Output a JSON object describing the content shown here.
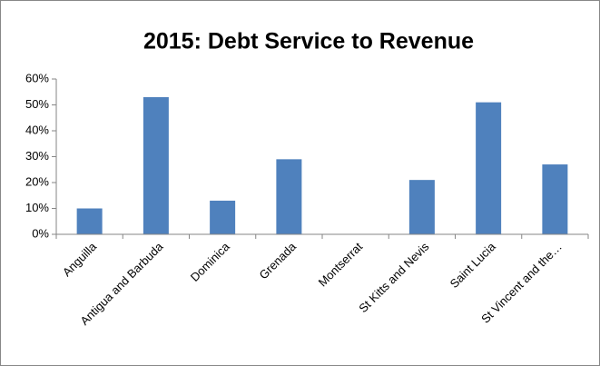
{
  "chart_data": {
    "type": "bar",
    "title": "2015: Debt Service to Revenue",
    "categories": [
      "Anguilla",
      "Antigua and Barbuda",
      "Dominica",
      "Grenada",
      "Montserrat",
      "St Kitts and Nevis",
      "Saint Lucia",
      "St Vincent and the…"
    ],
    "values": [
      10,
      53,
      13,
      29,
      0,
      21,
      51,
      27
    ],
    "color": "#4f81bd",
    "ylim": [
      0,
      60
    ],
    "yticks": [
      {
        "value": 0,
        "label": "0%"
      },
      {
        "value": 10,
        "label": "10%"
      },
      {
        "value": 20,
        "label": "20%"
      },
      {
        "value": 30,
        "label": "30%"
      },
      {
        "value": 40,
        "label": "40%"
      },
      {
        "value": 50,
        "label": "50%"
      },
      {
        "value": 60,
        "label": "60%"
      }
    ],
    "grid": false
  }
}
